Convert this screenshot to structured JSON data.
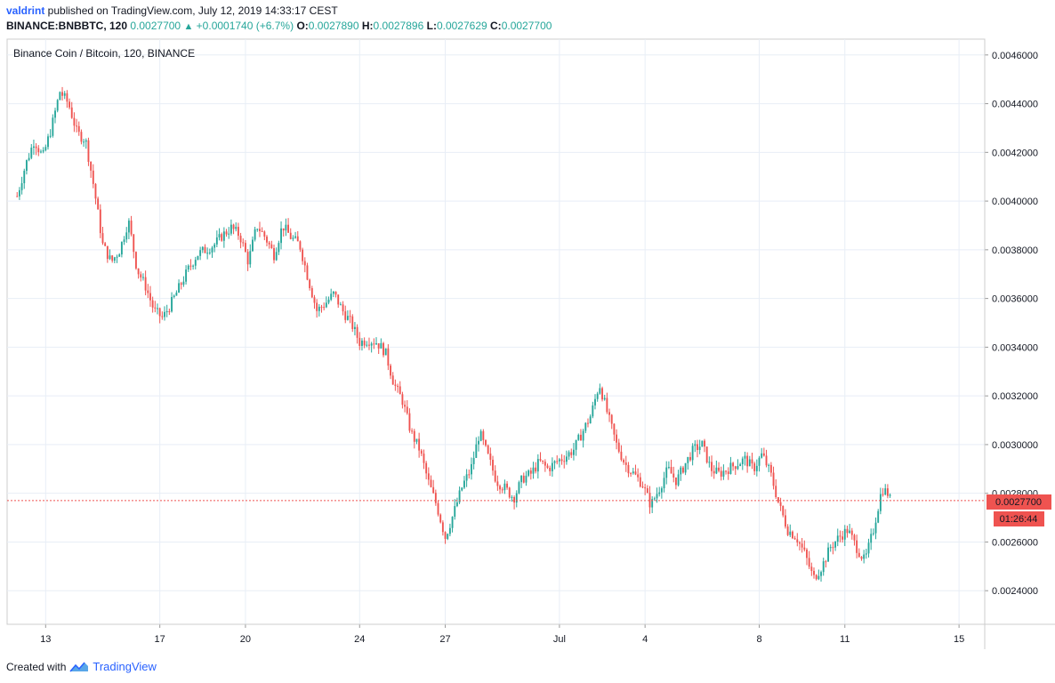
{
  "header": {
    "user": "valdrint",
    "published": " published on TradingView.com, July 12, 2019 14:33:17 CEST",
    "symbol": "BINANCE:BNBBTC, 120",
    "last": "0.0027700",
    "change": "+0.0001740 (+6.7%)",
    "o_label": "O:",
    "o": "0.0027890",
    "h_label": "H:",
    "h": "0.0027896",
    "l_label": "L:",
    "l": "0.0027629",
    "c_label": "C:",
    "c": "0.0027700"
  },
  "footer": {
    "created": "Created with",
    "brand": "TradingView"
  },
  "colors": {
    "up": "#26a69a",
    "down": "#ef5350",
    "grid": "#e8eef6",
    "accent": "#2962ff",
    "price_line": "#ef5350"
  },
  "chart_data": {
    "type": "candlestick",
    "title": "Binance Coin / Bitcoin, 120, BINANCE",
    "y_ticks": [
      "0.0046000",
      "0.0044000",
      "0.0042000",
      "0.0040000",
      "0.0038000",
      "0.0036000",
      "0.0034000",
      "0.0032000",
      "0.0030000",
      "0.0028000",
      "0.0026000",
      "0.0024000"
    ],
    "y_tick_values": [
      0.0046,
      0.0044,
      0.0042,
      0.004,
      0.0038,
      0.0036,
      0.0034,
      0.0032,
      0.003,
      0.0028,
      0.0026,
      0.0024
    ],
    "ylim": [
      0.002262,
      0.004665
    ],
    "x_ticks": [
      "13",
      "17",
      "20",
      "24",
      "27",
      "Jul",
      "4",
      "8",
      "11",
      "15"
    ],
    "x_tick_positions": [
      1.0,
      5.0,
      8.0,
      12.0,
      15.0,
      19.0,
      22.0,
      26.0,
      29.0,
      33.0
    ],
    "xlim": [
      -0.35,
      33.9
    ],
    "current_price_label": "0.0027700",
    "current_price": 0.00277,
    "countdown": "01:26:44",
    "close_path": [
      [
        0.0,
        0.00402
      ],
      [
        0.3,
        0.00415
      ],
      [
        0.6,
        0.00425
      ],
      [
        0.9,
        0.00418
      ],
      [
        1.2,
        0.0043
      ],
      [
        1.5,
        0.00445
      ],
      [
        1.8,
        0.0044
      ],
      [
        2.1,
        0.00428
      ],
      [
        2.4,
        0.00425
      ],
      [
        2.7,
        0.00405
      ],
      [
        3.0,
        0.00382
      ],
      [
        3.3,
        0.00375
      ],
      [
        3.6,
        0.0038
      ],
      [
        3.9,
        0.00392
      ],
      [
        4.2,
        0.00372
      ],
      [
        4.5,
        0.00365
      ],
      [
        4.8,
        0.00355
      ],
      [
        5.1,
        0.00352
      ],
      [
        5.4,
        0.00358
      ],
      [
        5.7,
        0.00365
      ],
      [
        6.0,
        0.00372
      ],
      [
        6.3,
        0.00378
      ],
      [
        6.6,
        0.0038
      ],
      [
        6.9,
        0.00382
      ],
      [
        7.2,
        0.00386
      ],
      [
        7.5,
        0.00389
      ],
      [
        7.8,
        0.00386
      ],
      [
        8.1,
        0.00375
      ],
      [
        8.4,
        0.0039
      ],
      [
        8.7,
        0.00385
      ],
      [
        9.0,
        0.00378
      ],
      [
        9.3,
        0.0039
      ],
      [
        9.6,
        0.00385
      ],
      [
        9.9,
        0.00382
      ],
      [
        10.2,
        0.00368
      ],
      [
        10.5,
        0.00355
      ],
      [
        10.8,
        0.00358
      ],
      [
        11.1,
        0.00362
      ],
      [
        11.4,
        0.00355
      ],
      [
        11.7,
        0.0035
      ],
      [
        12.0,
        0.00342
      ],
      [
        12.3,
        0.00343
      ],
      [
        12.6,
        0.00342
      ],
      [
        12.9,
        0.00338
      ],
      [
        13.2,
        0.00325
      ],
      [
        13.5,
        0.00318
      ],
      [
        13.8,
        0.00305
      ],
      [
        14.1,
        0.00298
      ],
      [
        14.4,
        0.00285
      ],
      [
        14.7,
        0.00275
      ],
      [
        15.0,
        0.00262
      ],
      [
        15.3,
        0.00272
      ],
      [
        15.6,
        0.00283
      ],
      [
        15.9,
        0.0029
      ],
      [
        16.2,
        0.00305
      ],
      [
        16.5,
        0.00295
      ],
      [
        16.8,
        0.00285
      ],
      [
        17.1,
        0.00282
      ],
      [
        17.4,
        0.00278
      ],
      [
        17.7,
        0.00286
      ],
      [
        18.0,
        0.00288
      ],
      [
        18.3,
        0.00293
      ],
      [
        18.6,
        0.0029
      ],
      [
        18.9,
        0.00293
      ],
      [
        19.2,
        0.00295
      ],
      [
        19.5,
        0.00298
      ],
      [
        19.8,
        0.00305
      ],
      [
        20.1,
        0.00312
      ],
      [
        20.4,
        0.00325
      ],
      [
        20.7,
        0.00312
      ],
      [
        21.0,
        0.003
      ],
      [
        21.3,
        0.00292
      ],
      [
        21.6,
        0.00288
      ],
      [
        21.9,
        0.00284
      ],
      [
        22.2,
        0.00275
      ],
      [
        22.5,
        0.00282
      ],
      [
        22.8,
        0.0029
      ],
      [
        23.1,
        0.00285
      ],
      [
        23.4,
        0.00292
      ],
      [
        23.7,
        0.00298
      ],
      [
        24.0,
        0.003
      ],
      [
        24.3,
        0.0029
      ],
      [
        24.6,
        0.00288
      ],
      [
        24.9,
        0.0029
      ],
      [
        25.2,
        0.00292
      ],
      [
        25.5,
        0.00294
      ],
      [
        25.8,
        0.0029
      ],
      [
        26.1,
        0.00296
      ],
      [
        26.4,
        0.00288
      ],
      [
        26.7,
        0.00275
      ],
      [
        27.0,
        0.00265
      ],
      [
        27.3,
        0.00262
      ],
      [
        27.6,
        0.00255
      ],
      [
        27.9,
        0.00245
      ],
      [
        28.2,
        0.0025
      ],
      [
        28.5,
        0.00258
      ],
      [
        28.8,
        0.00262
      ],
      [
        29.1,
        0.00265
      ],
      [
        29.4,
        0.00258
      ],
      [
        29.7,
        0.00252
      ],
      [
        30.0,
        0.00265
      ],
      [
        30.3,
        0.00282
      ],
      [
        30.5,
        0.0028
      ],
      [
        30.6,
        0.00277
      ]
    ]
  }
}
